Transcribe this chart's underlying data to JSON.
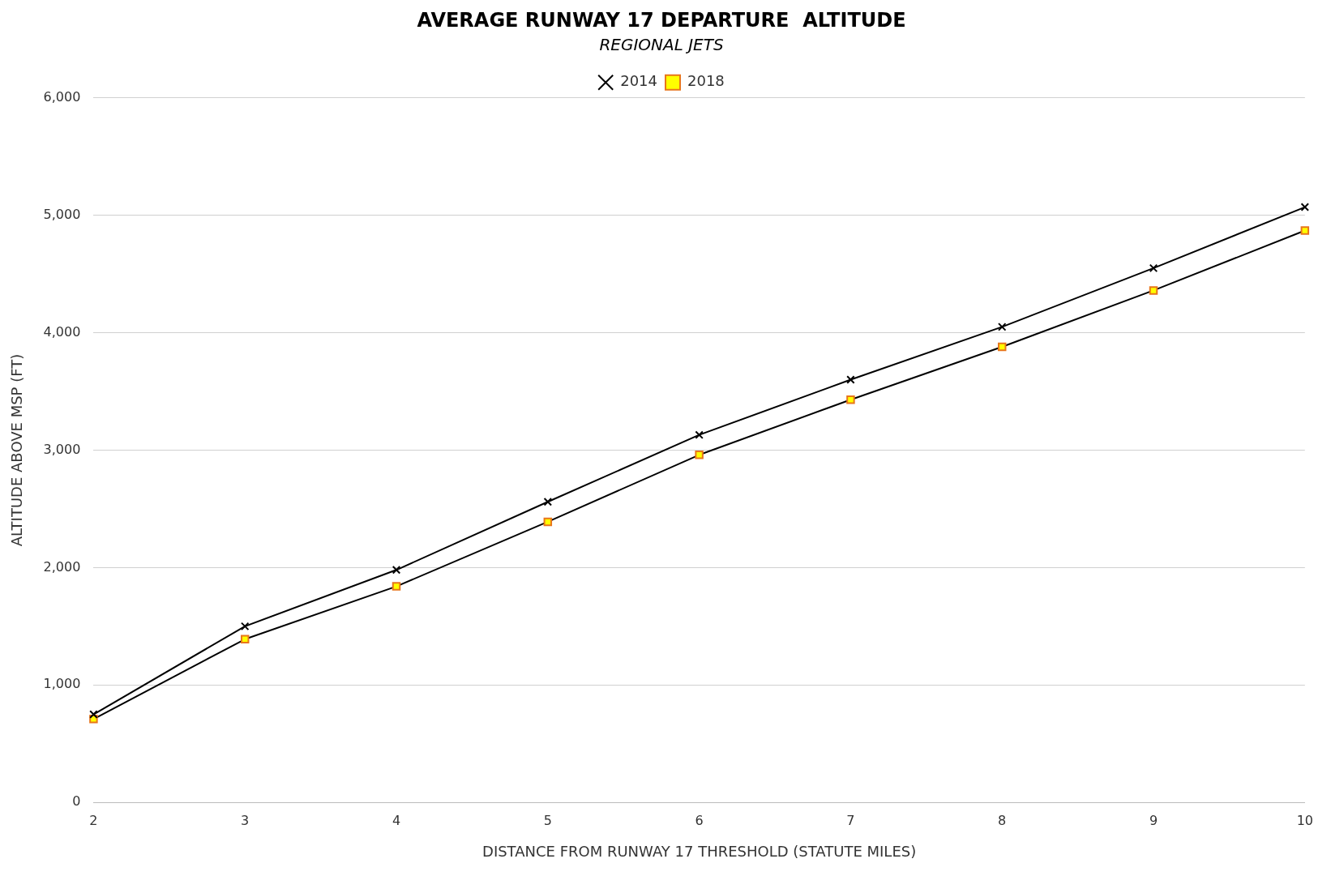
{
  "chart_data": {
    "type": "line",
    "title": "AVERAGE RUNWAY 17 DEPARTURE  ALTITUDE",
    "subtitle": "REGIONAL JETS",
    "xlabel": "DISTANCE FROM RUNWAY 17 THRESHOLD (STATUTE MILES)",
    "ylabel": "ALTITUDE ABOVE MSP (FT)",
    "categories": [
      "2",
      "3",
      "4",
      "5",
      "6",
      "7",
      "8",
      "9",
      "10"
    ],
    "series": [
      {
        "name": "2014",
        "color": "#000000",
        "marker": "cross",
        "values": [
          750,
          1500,
          1980,
          2560,
          3130,
          3600,
          4050,
          4550,
          5070
        ]
      },
      {
        "name": "2018",
        "color": "#000000",
        "marker": "square",
        "values": [
          710,
          1390,
          1840,
          2390,
          2960,
          3430,
          3880,
          4360,
          4870
        ]
      }
    ],
    "ylim": [
      0,
      6000
    ],
    "yticks": [
      {
        "value": 0,
        "label": "0"
      },
      {
        "value": 1000,
        "label": "1,000"
      },
      {
        "value": 2000,
        "label": "2,000"
      },
      {
        "value": 3000,
        "label": "3,000"
      },
      {
        "value": 4000,
        "label": "4,000"
      },
      {
        "value": 5000,
        "label": "5,000"
      },
      {
        "value": 6000,
        "label": "6,000"
      }
    ],
    "grid": "y",
    "legend": "top"
  }
}
